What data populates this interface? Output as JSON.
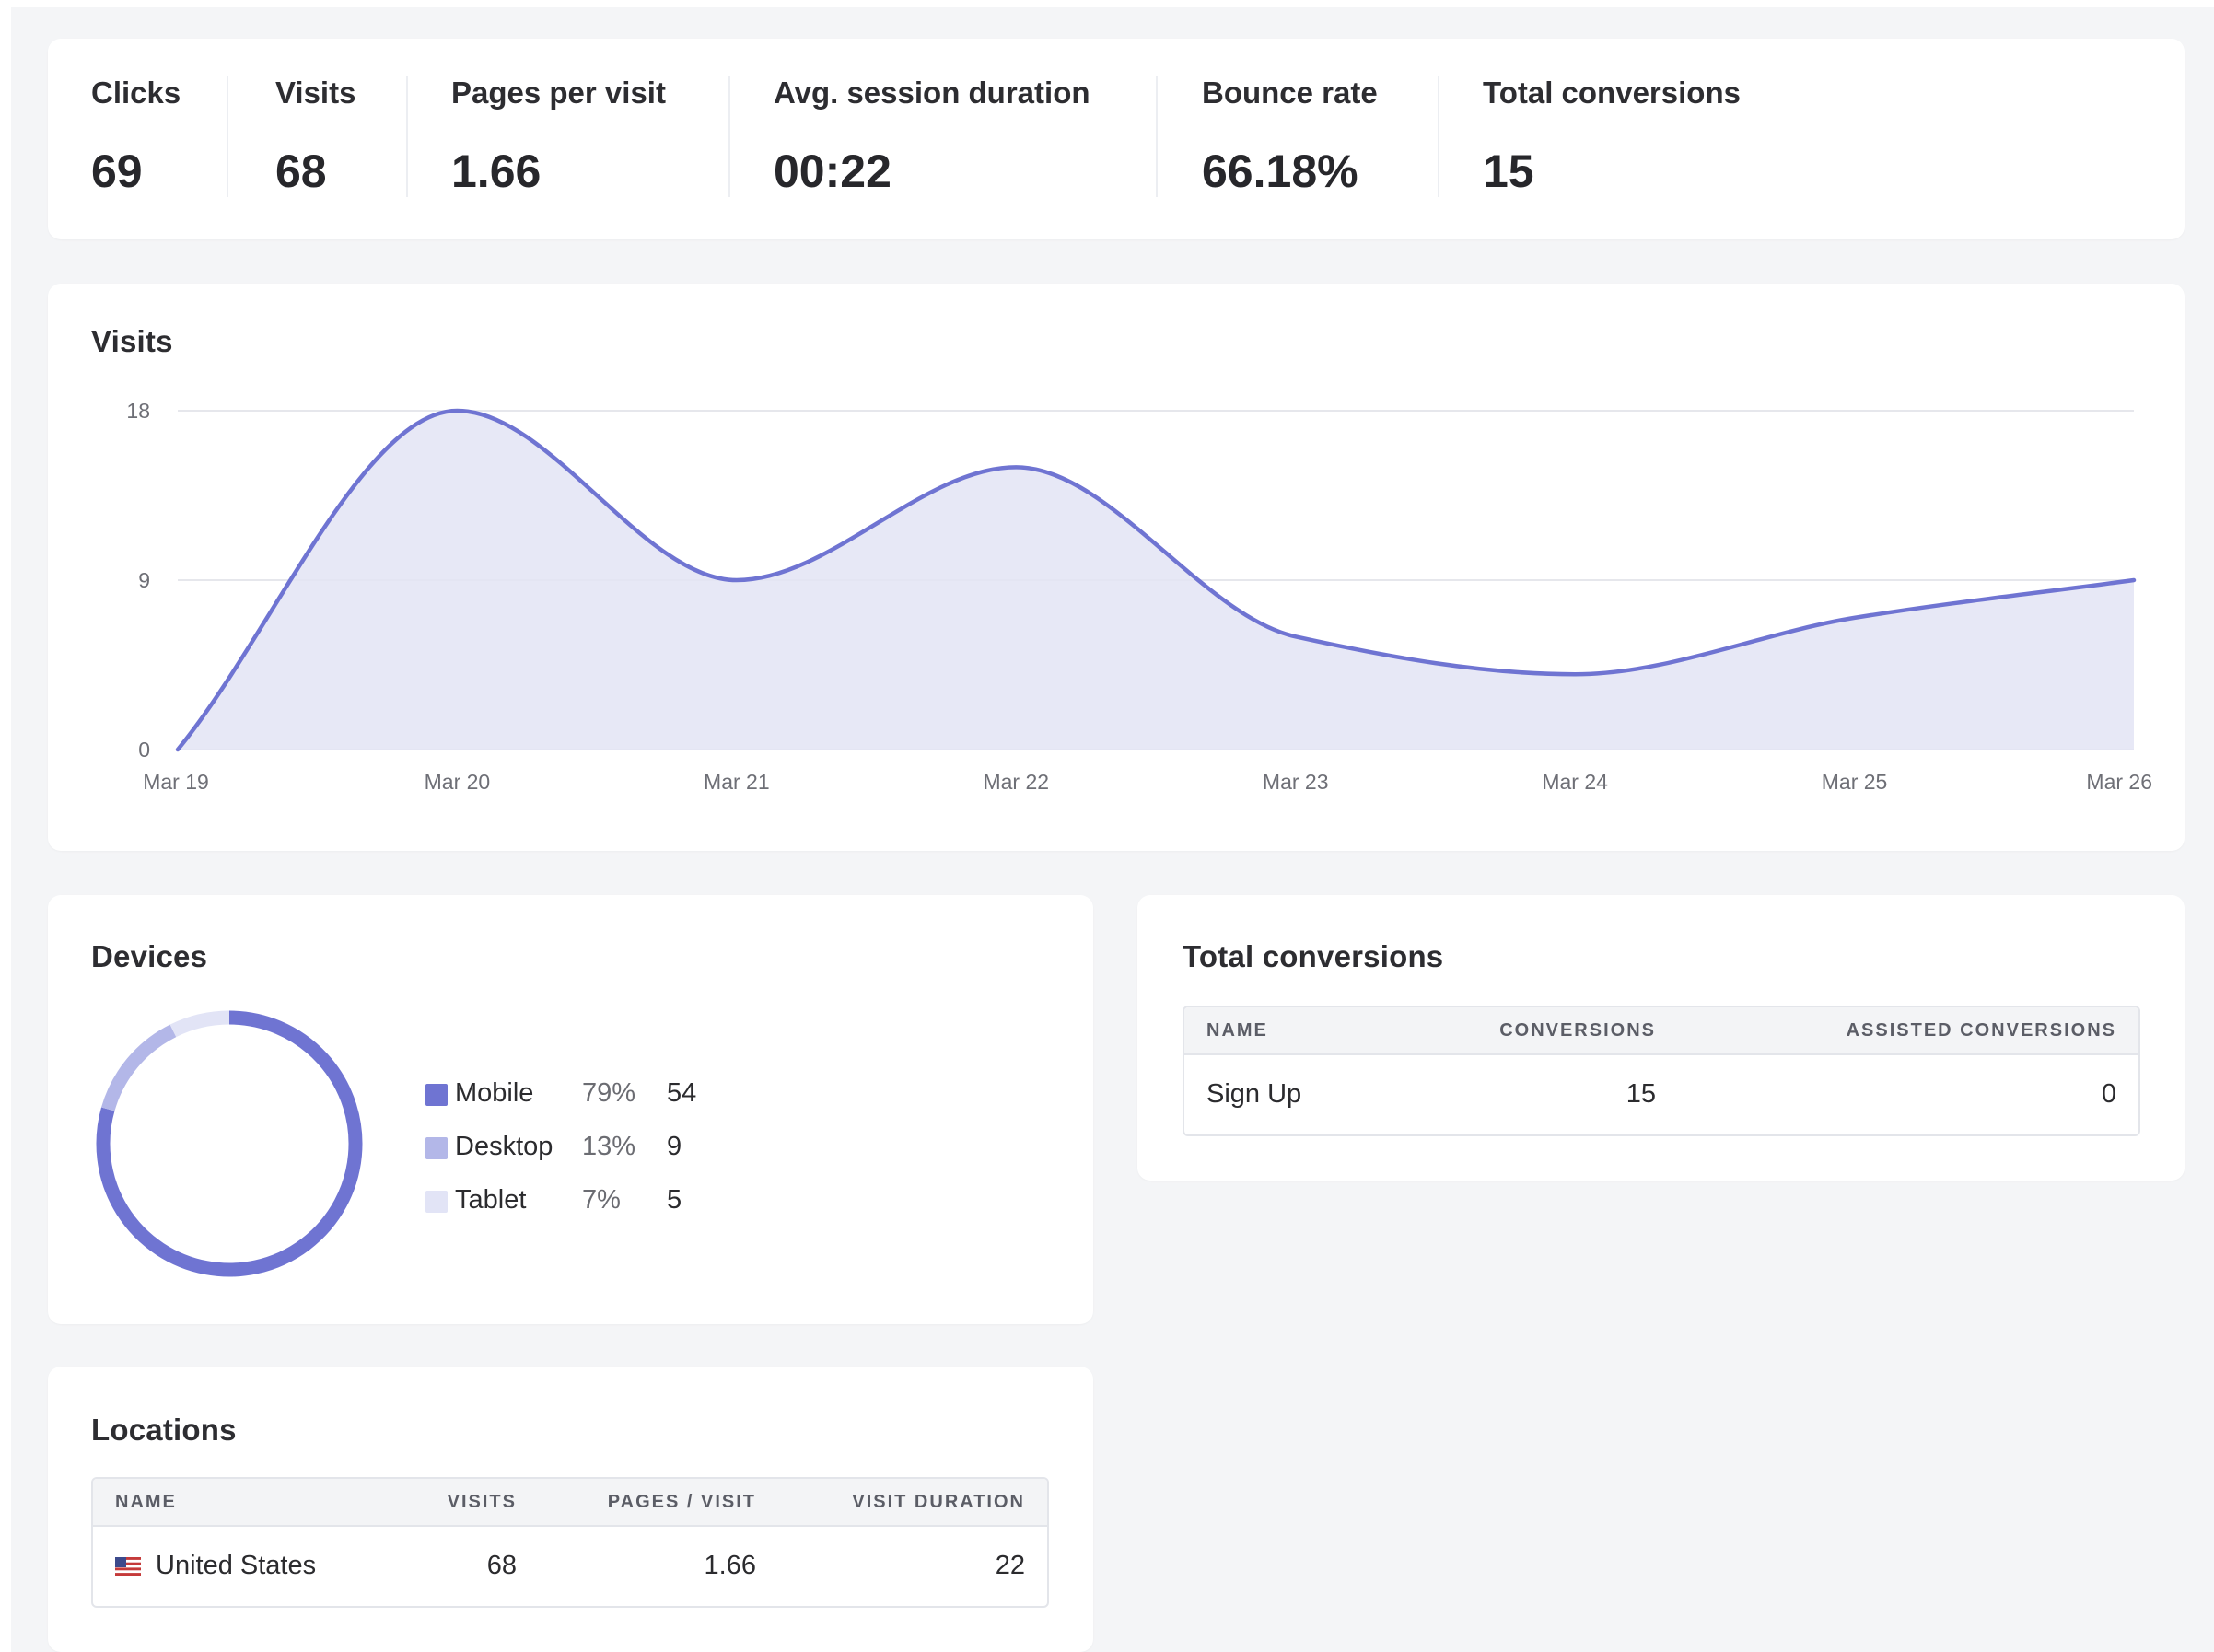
{
  "metrics": [
    {
      "label": "Clicks",
      "value": "69"
    },
    {
      "label": "Visits",
      "value": "68"
    },
    {
      "label": "Pages per visit",
      "value": "1.66"
    },
    {
      "label": "Avg. session duration",
      "value": "00:22"
    },
    {
      "label": "Bounce rate",
      "value": "66.18%"
    },
    {
      "label": "Total conversions",
      "value": "15"
    }
  ],
  "visits_card": {
    "title": "Visits"
  },
  "chart_data": {
    "type": "area",
    "title": "Visits",
    "x": [
      "Mar 19",
      "Mar 20",
      "Mar 21",
      "Mar 22",
      "Mar 23",
      "Mar 24",
      "Mar 25",
      "Mar 26"
    ],
    "series": [
      {
        "values": [
          0,
          18,
          9,
          15,
          6,
          4,
          7,
          9
        ]
      }
    ],
    "ylim": [
      0,
      18
    ],
    "yticks": [
      "0",
      "9",
      "18"
    ],
    "grid": true,
    "colors": {
      "line": "#6f74d2",
      "fill": "#e3e4f5"
    }
  },
  "devices": {
    "title": "Devices",
    "items": [
      {
        "name": "Mobile",
        "pct": "79%",
        "count": "54",
        "color": "#6f74d2"
      },
      {
        "name": "Desktop",
        "pct": "13%",
        "count": "9",
        "color": "#b3b7e8"
      },
      {
        "name": "Tablet",
        "pct": "7%",
        "count": "5",
        "color": "#e2e4f6"
      }
    ]
  },
  "conversions": {
    "title": "Total conversions",
    "headers": [
      "NAME",
      "CONVERSIONS",
      "ASSISTED CONVERSIONS"
    ],
    "rows": [
      {
        "name": "Sign Up",
        "conversions": "15",
        "assisted": "0"
      }
    ]
  },
  "locations": {
    "title": "Locations",
    "headers": [
      "NAME",
      "VISITS",
      "PAGES / VISIT",
      "VISIT DURATION"
    ],
    "rows": [
      {
        "name": "United States",
        "visits": "68",
        "pages_per_visit": "1.66",
        "visit_duration": "22",
        "flag": "us-flag-icon"
      }
    ]
  }
}
